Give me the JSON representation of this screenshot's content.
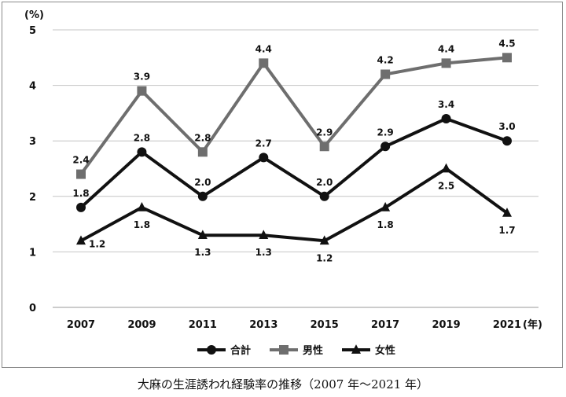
{
  "chart_data": {
    "type": "line",
    "y_unit": "(%)",
    "x_unit": "(年)",
    "categories": [
      "2007",
      "2009",
      "2011",
      "2013",
      "2015",
      "2017",
      "2019",
      "2021"
    ],
    "ylim": [
      0,
      5
    ],
    "yticks": [
      "0",
      "1",
      "2",
      "3",
      "4",
      "5"
    ],
    "grid": true,
    "legend_position": "bottom",
    "series": [
      {
        "name": "合計",
        "marker": "circle",
        "color": "#111111",
        "values": [
          1.8,
          2.8,
          2.0,
          2.7,
          2.0,
          2.9,
          3.4,
          3.0
        ],
        "labels": [
          "1.8",
          "2.8",
          "2.0",
          "2.7",
          "2.0",
          "2.9",
          "3.4",
          "3.0"
        ]
      },
      {
        "name": "男性",
        "marker": "square",
        "color": "#6e6e6e",
        "values": [
          2.4,
          3.9,
          2.8,
          4.4,
          2.9,
          4.2,
          4.4,
          4.5
        ],
        "labels": [
          "2.4",
          "3.9",
          "2.8",
          "4.4",
          "2.9",
          "4.2",
          "4.4",
          "4.5"
        ]
      },
      {
        "name": "女性",
        "marker": "triangle",
        "color": "#111111",
        "values": [
          1.2,
          1.8,
          1.3,
          1.3,
          1.2,
          1.8,
          2.5,
          1.7
        ],
        "labels": [
          "1.2",
          "1.8",
          "1.3",
          "1.3",
          "1.2",
          "1.8",
          "2.5",
          "1.7"
        ]
      }
    ]
  },
  "caption": "大麻の生涯誘われ経験率の推移（2007 年〜2021 年）"
}
